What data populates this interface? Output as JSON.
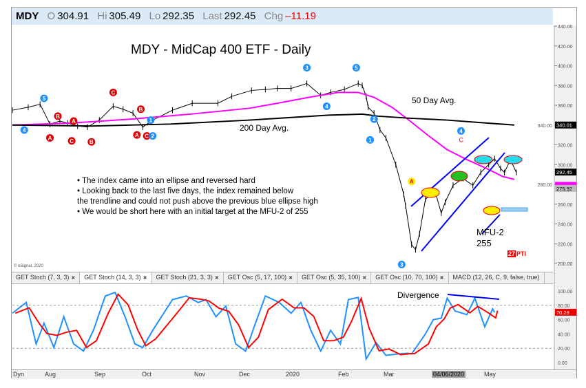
{
  "header": {
    "symbol": "MDY",
    "open_label": "O",
    "open": "304.91",
    "high_label": "Hi",
    "high": "305.49",
    "low_label": "Lo",
    "low": "292.35",
    "last_label": "Last",
    "last": "292.45",
    "chg_label": "Chg",
    "chg": "–11.19"
  },
  "copyright": "© eSignal, 2020",
  "tabs": [
    {
      "label": "GET Stoch (7, 3, 3)"
    },
    {
      "label": "GET Stoch (14, 3, 3)",
      "active": true
    },
    {
      "label": "GET Stoch (21, 3, 3)"
    },
    {
      "label": "GET Osc (5, 17, 100)"
    },
    {
      "label": "GET Osc (5, 35, 100)"
    },
    {
      "label": "GET Osc (10, 70, 100)"
    },
    {
      "label": "MACD (12, 26, C, 9, false, true)"
    }
  ],
  "xaxis": {
    "dyn": "Dyn",
    "labels": [
      "Aug",
      "Sep",
      "Oct",
      "Nov",
      "Dec",
      "2020",
      "Feb",
      "Mar",
      "04/06/2020",
      "May"
    ]
  },
  "colors": {
    "price": "#000000",
    "ma50": "#ff00ff",
    "ma200": "#000000",
    "stoch_k": "#1e90ff",
    "stoch_d": "#ff0000",
    "wave_blue": "#1e90ff",
    "wave_red": "#e00000"
  },
  "chart_data": [
    {
      "type": "line",
      "title": "MDY - MidCap 400 ETF - Daily",
      "ylim": [
        200,
        440
      ],
      "yticks": [
        "440.00",
        "420.00",
        "400.00",
        "380.00",
        "360.00",
        "340.00",
        "320.00",
        "300.00",
        "280.00",
        "260.00",
        "240.00",
        "220.00",
        "200.00"
      ],
      "price_tags": {
        "ma200": "340.01",
        "last": "292.45",
        "other": "275.92"
      },
      "series": [
        {
          "name": "Price",
          "points": [
            [
              0,
              355
            ],
            [
              8,
              358
            ],
            [
              14,
              361
            ],
            [
              19,
              341
            ],
            [
              24,
              344
            ],
            [
              28,
              342
            ],
            [
              33,
              339
            ],
            [
              38,
              338
            ],
            [
              44,
              345
            ],
            [
              51,
              359
            ],
            [
              56,
              356
            ],
            [
              61,
              352
            ],
            [
              66,
              338
            ],
            [
              71,
              345
            ],
            [
              81,
              355
            ],
            [
              91,
              362
            ],
            [
              104,
              362
            ],
            [
              111,
              369
            ],
            [
              121,
              375
            ],
            [
              128,
              376
            ],
            [
              134,
              377
            ],
            [
              141,
              377
            ],
            [
              149,
              382
            ],
            [
              156,
              370
            ],
            [
              161,
              373
            ],
            [
              168,
              376
            ],
            [
              175,
              382
            ],
            [
              177,
              380
            ],
            [
              179,
              369
            ],
            [
              180,
              358
            ],
            [
              183,
              352
            ],
            [
              186,
              335
            ],
            [
              189,
              327
            ],
            [
              194,
              300
            ],
            [
              198,
              270
            ],
            [
              199,
              258
            ],
            [
              202,
              219
            ],
            [
              204,
              214
            ],
            [
              206,
              230
            ],
            [
              209,
              265
            ],
            [
              212,
              270
            ],
            [
              214,
              272
            ],
            [
              217,
              251
            ],
            [
              219,
              262
            ],
            [
              223,
              279
            ],
            [
              228,
              286
            ],
            [
              233,
              279
            ],
            [
              237,
              292
            ],
            [
              241,
              300
            ],
            [
              244,
              306
            ],
            [
              247,
              296
            ],
            [
              249,
              292
            ],
            [
              252,
              305
            ],
            [
              255,
              292
            ]
          ]
        },
        {
          "name": "50 Day Avg.",
          "points": [
            [
              0,
              340
            ],
            [
              30,
              342
            ],
            [
              60,
              346
            ],
            [
              90,
              351
            ],
            [
              120,
              357
            ],
            [
              134,
              362
            ],
            [
              150,
              368
            ],
            [
              165,
              373
            ],
            [
              175,
              373
            ],
            [
              183,
              368
            ],
            [
              192,
              358
            ],
            [
              200,
              346
            ],
            [
              210,
              330
            ],
            [
              220,
              315
            ],
            [
              230,
              305
            ],
            [
              240,
              296
            ],
            [
              248,
              288
            ],
            [
              254,
              285
            ]
          ]
        },
        {
          "name": "200 Day Avg.",
          "points": [
            [
              0,
              340
            ],
            [
              40,
              339
            ],
            [
              80,
              341
            ],
            [
              120,
              345
            ],
            [
              160,
              350
            ],
            [
              177,
              351
            ],
            [
              185,
              349
            ],
            [
              200,
              347
            ],
            [
              220,
              345
            ],
            [
              240,
              342
            ],
            [
              254,
              340
            ]
          ]
        }
      ],
      "annotations": {
        "ma50_label": "50 Day Avg.",
        "ma200_label": "200 Day Avg.",
        "mfu_label": "MFU-2",
        "mfu_value": "255",
        "pti": "27",
        "pti_suffix": "PTI",
        "bullets": [
          "• The index came into an ellipse and reversed hard",
          "• Looking back to the last five days, the index remained below",
          "   the trendline and could not push above the previous blue ellipse high",
          "• We would be short here with an initial target at the MFU-2 of 255"
        ],
        "waves": [
          {
            "t": "5",
            "c": "blue",
            "d": 16,
            "p": 367
          },
          {
            "t": "4",
            "c": "blue",
            "d": 6,
            "p": 335
          },
          {
            "t": "B",
            "c": "red",
            "d": 23,
            "p": 349
          },
          {
            "t": "A",
            "c": "red",
            "d": 19,
            "p": 327
          },
          {
            "t": "C",
            "c": "red",
            "d": 30,
            "p": 324
          },
          {
            "t": "A",
            "c": "red",
            "d": 31,
            "p": 344
          },
          {
            "t": "B",
            "c": "red",
            "d": 40,
            "p": 323
          },
          {
            "t": "C",
            "c": "red",
            "d": 51,
            "p": 373
          },
          {
            "t": "B",
            "c": "red",
            "d": 65,
            "p": 356
          },
          {
            "t": "A",
            "c": "red",
            "d": 63,
            "p": 330
          },
          {
            "t": "C",
            "c": "red",
            "d": 68,
            "p": 329
          },
          {
            "t": "1",
            "c": "blue",
            "d": 70,
            "p": 345
          },
          {
            "t": "2",
            "c": "blue",
            "d": 71,
            "p": 329
          },
          {
            "t": "3",
            "c": "blue",
            "d": 149,
            "p": 398
          },
          {
            "t": "4",
            "c": "blue",
            "d": 159,
            "p": 359
          },
          {
            "t": "5",
            "c": "blue",
            "d": 174,
            "p": 398
          },
          {
            "t": "2",
            "c": "blue",
            "d": 183,
            "p": 346
          },
          {
            "t": "1",
            "c": "blue",
            "d": 181,
            "p": 325
          },
          {
            "t": "3",
            "c": "blue",
            "d": 197,
            "p": 199
          },
          {
            "t": "4",
            "c": "blue",
            "d": 227,
            "p": 334
          },
          {
            "t": "A",
            "c": "yellow",
            "d": 202,
            "p": 283
          },
          {
            "t": "C",
            "c": "redtext",
            "d": 227,
            "p": 325
          }
        ]
      }
    },
    {
      "type": "line",
      "title": "GET Stoch (14, 3, 3)",
      "ylim": [
        0,
        100
      ],
      "yticks": [
        "100.00",
        "80.00",
        "60.00",
        "40.00",
        "20.00",
        "0.00"
      ],
      "last_value": "70.28",
      "annotation": "Divergence",
      "series": [
        {
          "name": "%K",
          "points": [
            [
              0,
              69
            ],
            [
              7,
              84
            ],
            [
              12,
              26
            ],
            [
              16,
              55
            ],
            [
              21,
              21
            ],
            [
              26,
              64
            ],
            [
              31,
              26
            ],
            [
              36,
              16
            ],
            [
              41,
              45
            ],
            [
              47,
              93
            ],
            [
              52,
              98
            ],
            [
              57,
              64
            ],
            [
              62,
              26
            ],
            [
              66,
              21
            ],
            [
              71,
              45
            ],
            [
              81,
              88
            ],
            [
              88,
              93
            ],
            [
              94,
              84
            ],
            [
              98,
              88
            ],
            [
              103,
              64
            ],
            [
              108,
              79
            ],
            [
              113,
              26
            ],
            [
              118,
              16
            ],
            [
              123,
              55
            ],
            [
              128,
              93
            ],
            [
              135,
              84
            ],
            [
              141,
              69
            ],
            [
              146,
              84
            ],
            [
              151,
              45
            ],
            [
              156,
              16
            ],
            [
              161,
              45
            ],
            [
              166,
              26
            ],
            [
              170,
              88
            ],
            [
              175,
              91
            ],
            [
              179,
              5
            ],
            [
              184,
              28
            ],
            [
              189,
              10
            ],
            [
              195,
              12
            ],
            [
              200,
              13
            ],
            [
              202,
              12
            ],
            [
              209,
              40
            ],
            [
              213,
              60
            ],
            [
              217,
              62
            ],
            [
              220,
              90
            ],
            [
              224,
              72
            ],
            [
              230,
              67
            ],
            [
              234,
              90
            ],
            [
              239,
              50
            ],
            [
              243,
              75
            ],
            [
              244,
              70
            ]
          ]
        }
      ]
    }
  ]
}
